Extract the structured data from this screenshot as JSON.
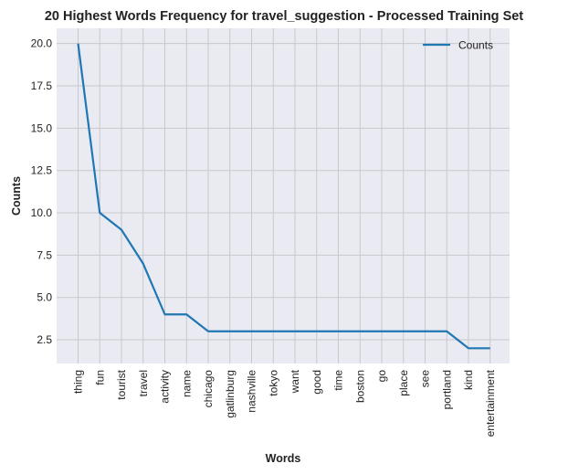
{
  "chart_data": {
    "type": "line",
    "title": "20 Highest Words Frequency for travel_suggestion - Processed Training Set",
    "xlabel": "Words",
    "ylabel": "Counts",
    "categories": [
      "thing",
      "fun",
      "tourist",
      "travel",
      "activity",
      "name",
      "chicago",
      "gatlinburg",
      "nashville",
      "tokyo",
      "want",
      "good",
      "time",
      "boston",
      "go",
      "place",
      "see",
      "portland",
      "kind",
      "entertainment"
    ],
    "series": [
      {
        "name": "Counts",
        "values": [
          20,
          10,
          9,
          7,
          4,
          4,
          3,
          3,
          3,
          3,
          3,
          3,
          3,
          3,
          3,
          3,
          3,
          3,
          2,
          2
        ]
      }
    ],
    "y_ticks": [
      "2.5",
      "5.0",
      "7.5",
      "10.0",
      "12.5",
      "15.0",
      "17.5",
      "20.0"
    ],
    "ylim": [
      1.1,
      20.9
    ],
    "grid": true,
    "legend_position": "upper right",
    "colors": {
      "line": "#1f77b4",
      "plot_bg": "#eaeaf2",
      "grid": "#c8c8cc"
    }
  }
}
